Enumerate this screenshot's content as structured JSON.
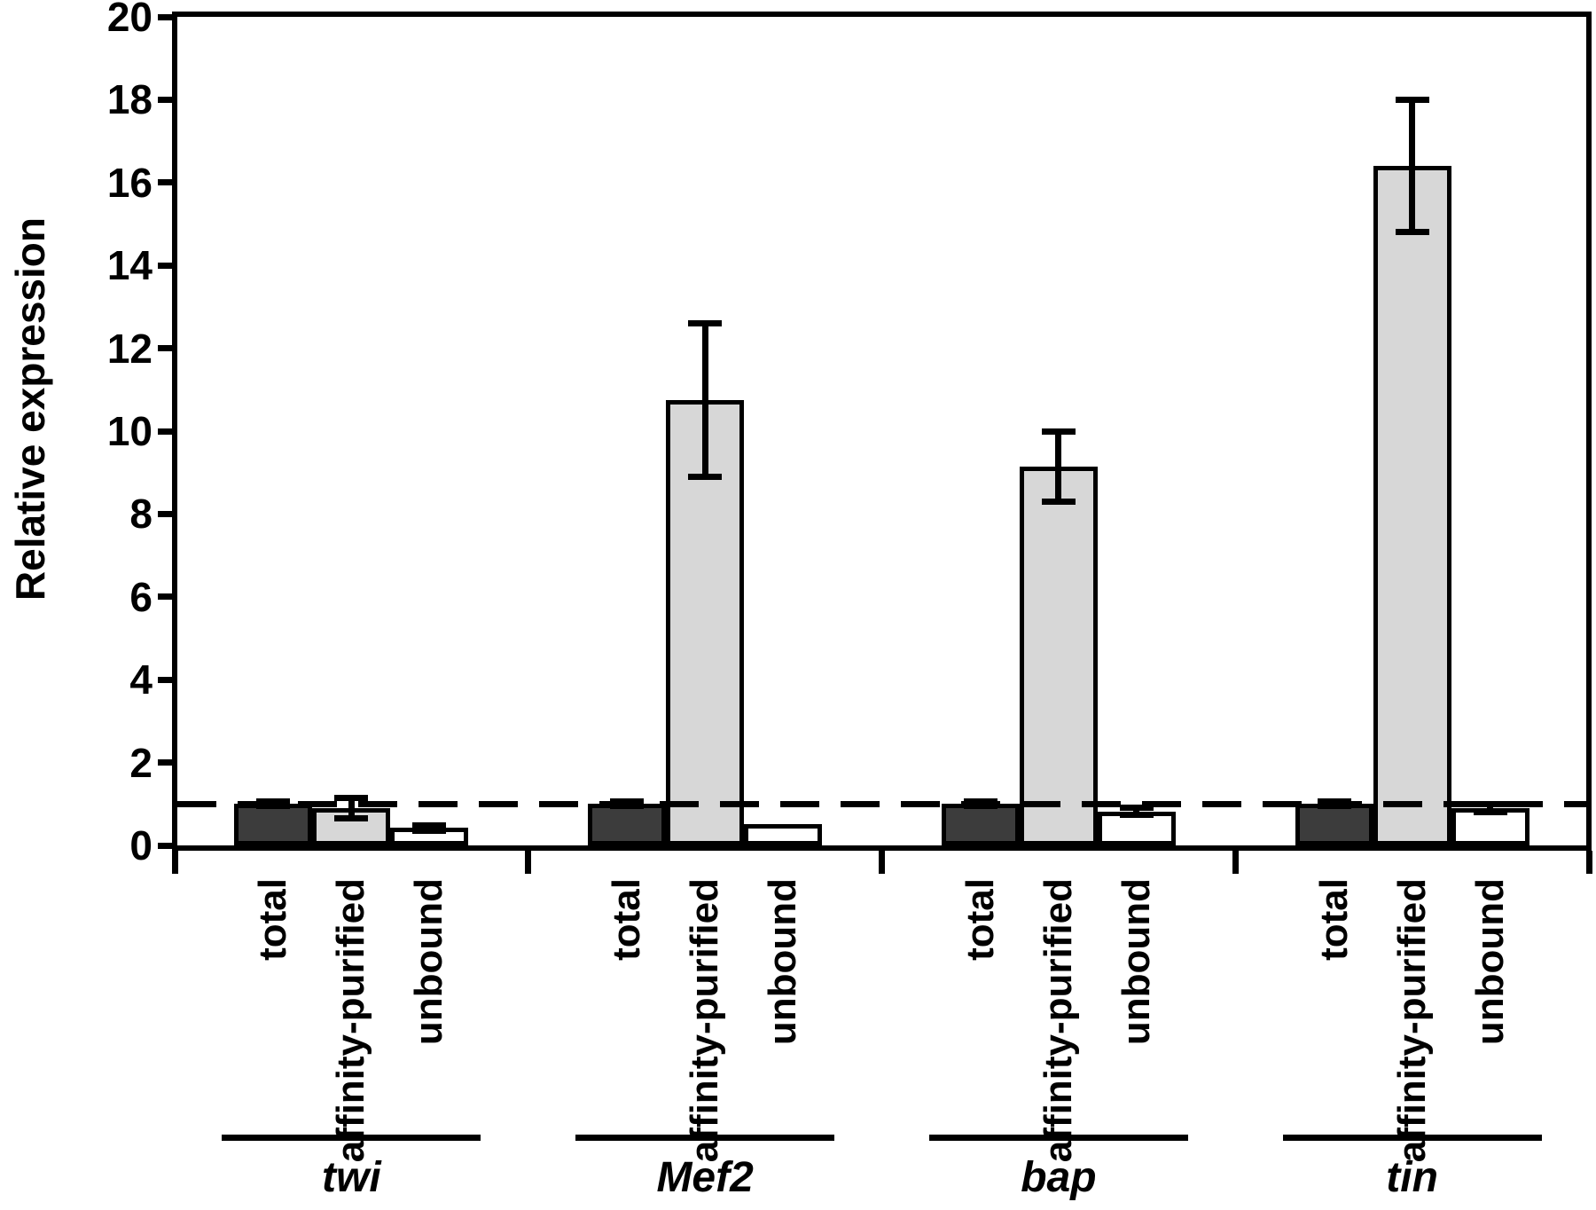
{
  "chart_data": {
    "type": "bar",
    "title": "",
    "ylabel": "Relative expression",
    "xlabel": "",
    "ylim": [
      0,
      20
    ],
    "ytick_interval": 2,
    "ytick_labels": [
      "0",
      "2",
      "4",
      "6",
      "8",
      "10",
      "12",
      "14",
      "16",
      "18",
      "20"
    ],
    "reference_line_y": 1,
    "reference_line_style": "dashed",
    "grid": false,
    "legend_position": "none",
    "categories": [
      "twi",
      "Mef2",
      "bap",
      "tin"
    ],
    "conditions": [
      "total",
      "affinity-purified",
      "unbound"
    ],
    "series": [
      {
        "name": "total",
        "color": "#3c3c3c",
        "values": [
          1.0,
          1.0,
          1.0,
          1.0
        ],
        "errors": [
          0.05,
          0.05,
          0.05,
          0.05
        ]
      },
      {
        "name": "affinity-purified",
        "color": "#d7d7d7",
        "values": [
          0.9,
          10.75,
          9.15,
          16.4
        ],
        "errors": [
          0.25,
          1.85,
          0.85,
          1.6
        ]
      },
      {
        "name": "unbound",
        "color": "#ffffff",
        "values": [
          0.42,
          0.52,
          0.82,
          0.9
        ],
        "errors": [
          0.06,
          0,
          0.08,
          0.1
        ]
      }
    ],
    "bar_outline_color": "#000000",
    "error_bar_color": "#000000",
    "axis_color": "#000000"
  }
}
